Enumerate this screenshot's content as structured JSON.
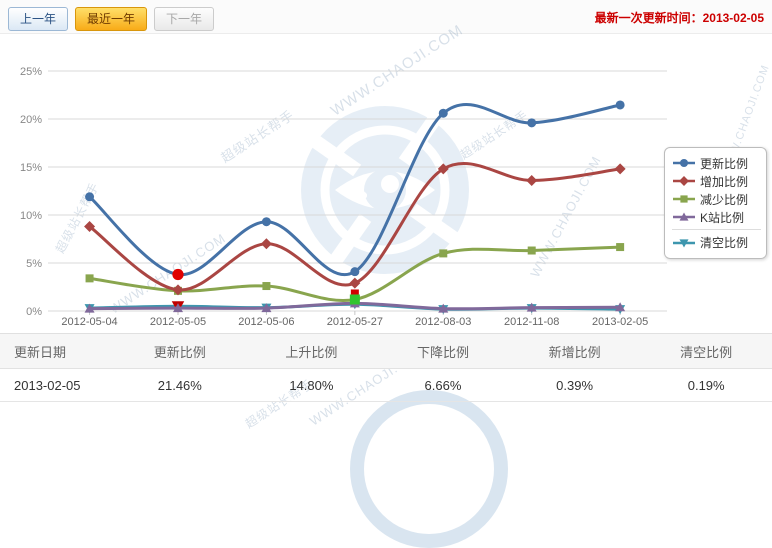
{
  "tabs": [
    {
      "label": "上一年",
      "state": "normal"
    },
    {
      "label": "最近一年",
      "state": "active"
    },
    {
      "label": "下一年",
      "state": "disabled"
    }
  ],
  "update_time_text": "最新一次更新时间：2013-02-05",
  "watermark": {
    "texts": [
      "WWW.CHAOJI.COM",
      "超级站长帮手"
    ]
  },
  "chart_data": {
    "type": "line",
    "title": "",
    "xlabel": "",
    "ylabel": "",
    "ylim": [
      0,
      25
    ],
    "ytick_step": 5,
    "ytick_suffix": "%",
    "grid": true,
    "legend_position": "right",
    "categories": [
      "2012-05-04",
      "2012-05-05",
      "2012-05-06",
      "2012-05-27",
      "2012-08-03",
      "2012-11-08",
      "2013-02-05"
    ],
    "series": [
      {
        "name": "更新比例",
        "color": "#4572A7",
        "marker": "circle",
        "values": [
          11.9,
          3.8,
          9.3,
          4.1,
          20.6,
          19.6,
          21.46
        ],
        "highlights": {
          "1": "#e00000"
        }
      },
      {
        "name": "增加比例",
        "color": "#AA4643",
        "marker": "diamond",
        "values": [
          8.8,
          2.2,
          7.0,
          2.9,
          14.8,
          13.6,
          14.8
        ]
      },
      {
        "name": "减少比例",
        "color": "#89A54E",
        "marker": "square",
        "values": [
          3.4,
          2.1,
          2.6,
          1.2,
          6.0,
          6.3,
          6.66
        ],
        "highlights": {
          "3": "#2fc52f"
        },
        "badges": {
          "3": "#d00000"
        }
      },
      {
        "name": "K站比例",
        "color": "#80699B",
        "marker": "triangle",
        "values": [
          0.25,
          0.3,
          0.3,
          0.8,
          0.25,
          0.35,
          0.39
        ]
      },
      {
        "name": "清空比例",
        "color": "#3D96AE",
        "marker": "triangle-down",
        "values": [
          0.3,
          0.5,
          0.35,
          0.7,
          0.2,
          0.3,
          0.19
        ],
        "highlights": {
          "1": "#c00000"
        }
      }
    ]
  },
  "table": {
    "headers": [
      "更新日期",
      "更新比例",
      "上升比例",
      "下降比例",
      "新增比例",
      "清空比例"
    ],
    "rows": [
      [
        "2013-02-05",
        "21.46%",
        "14.80%",
        "6.66%",
        "0.39%",
        "0.19%"
      ]
    ]
  }
}
